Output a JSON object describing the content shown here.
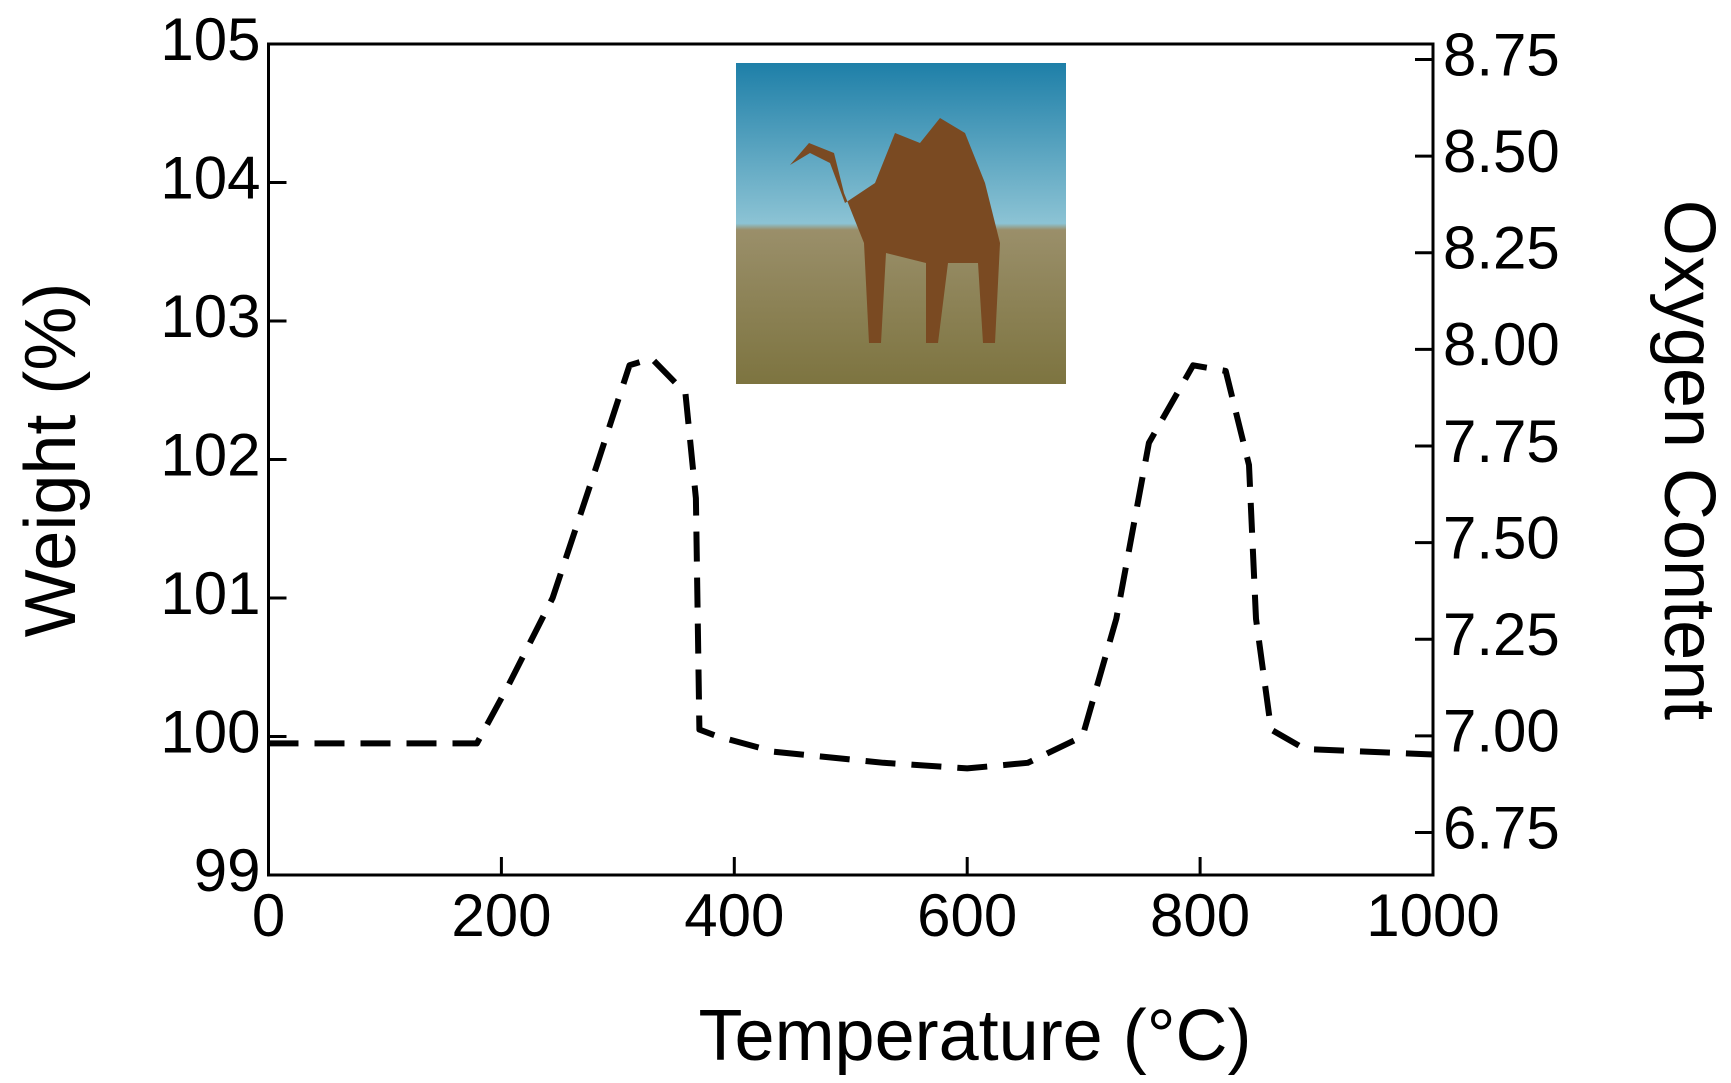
{
  "chart_data": {
    "type": "line",
    "xlabel": "Temperature (°C)",
    "ylabel": "Weight (%)",
    "y2label": "Oxygen Content",
    "x": [
      0,
      179,
      206,
      244,
      282,
      310,
      329,
      358,
      367,
      370,
      386,
      434,
      528,
      600,
      652,
      699,
      728,
      756,
      794,
      822,
      842,
      848,
      861,
      890,
      1000
    ],
    "series": [
      {
        "color": "#000000",
        "dashed": true,
        "values": [
          99.95,
          99.95,
          100.37,
          101.0,
          101.96,
          102.68,
          102.73,
          102.48,
          101.72,
          100.05,
          100.0,
          99.89,
          99.81,
          99.77,
          99.81,
          100.0,
          100.85,
          102.12,
          102.68,
          102.64,
          101.96,
          100.85,
          100.05,
          99.91,
          99.87
        ]
      }
    ],
    "xlim": [
      0,
      1000
    ],
    "xticks": [
      0,
      200,
      400,
      600,
      800,
      1000
    ],
    "ylim": [
      99,
      105
    ],
    "yticks": [
      99,
      100,
      101,
      102,
      103,
      104,
      105
    ],
    "y2lim": [
      6.64,
      8.79
    ],
    "y2ticks": [
      {
        "value": 6.75,
        "label": "6.75"
      },
      {
        "value": 7.0,
        "label": "7.00"
      },
      {
        "value": 7.25,
        "label": "7.25"
      },
      {
        "value": 7.5,
        "label": "7.50"
      },
      {
        "value": 7.75,
        "label": "7.75"
      },
      {
        "value": 8.0,
        "label": "8.00"
      },
      {
        "value": 8.25,
        "label": "8.25"
      },
      {
        "value": 8.5,
        "label": "8.50"
      },
      {
        "value": 8.75,
        "label": "8.75"
      }
    ],
    "grid": false
  }
}
